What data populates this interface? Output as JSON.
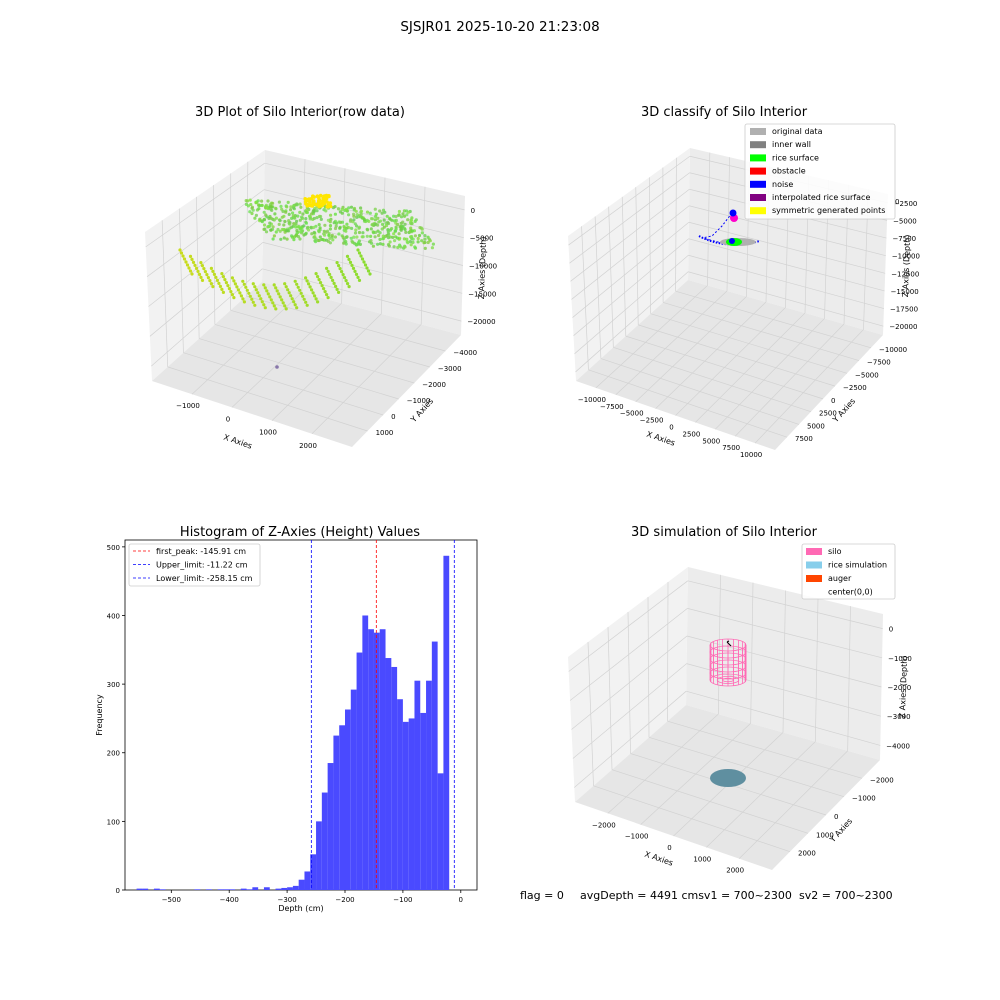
{
  "figure": {
    "suptitle": "SJSJR01 2025-10-20 21:23:08"
  },
  "panels": {
    "raw": {
      "title": "3D Plot of Silo Interior(row data)",
      "xlabel": "X Axies",
      "ylabel": "Y Axies",
      "zlabel": "Z Axies (Depth)",
      "xticks": [
        "−1000",
        "0",
        "1000",
        "2000"
      ],
      "yticks": [
        "1000",
        "0",
        "−1000",
        "−2000",
        "−3000",
        "−4000"
      ],
      "zticks": [
        "0",
        "−5000",
        "−10000",
        "−15000",
        "−20000"
      ]
    },
    "classify": {
      "title": "3D classify of Silo Interior",
      "xlabel": "X Axies",
      "ylabel": "Y Axies",
      "zlabel": "Z Axies (Depth)",
      "xticks": [
        "−10000",
        "−7500",
        "−5000",
        "−2500",
        "0",
        "2500",
        "5000",
        "7500",
        "10000"
      ],
      "yticks": [
        "7500",
        "5000",
        "2500",
        "0",
        "−2500",
        "−5000",
        "−7500",
        "−10000"
      ],
      "zticks": [
        "−2500",
        "−5000",
        "−7500",
        "−10000",
        "−12500",
        "−15000",
        "−17500",
        "−20000"
      ],
      "ztop_partial": "0",
      "legend": [
        {
          "label": "original data",
          "color": "#b0b0b0"
        },
        {
          "label": "inner wall",
          "color": "#808080"
        },
        {
          "label": "rice surface",
          "color": "#00ff00"
        },
        {
          "label": "obstacle",
          "color": "#ff0000"
        },
        {
          "label": "noise",
          "color": "#0000ff"
        },
        {
          "label": "interpolated rice surface",
          "color": "#800080"
        },
        {
          "label": "symmetric generated points",
          "color": "#ffff00"
        }
      ]
    },
    "simulation": {
      "title": "3D simulation of Silo Interior",
      "xlabel": "X Axies",
      "ylabel": "Y Axies",
      "zlabel": "Z Axies (Depth)",
      "xticks": [
        "−2000",
        "−1000",
        "0",
        "1000",
        "2000"
      ],
      "yticks": [
        "2000",
        "1000",
        "0",
        "−1000",
        "−2000"
      ],
      "zticks": [
        "0",
        "−1000",
        "−2000",
        "−3000",
        "−4000"
      ],
      "legend": [
        {
          "label": "silo",
          "color": "#ff69b4"
        },
        {
          "label": "rice simulation",
          "color": "#87ceeb"
        },
        {
          "label": "auger",
          "color": "#ff4500"
        },
        {
          "label": "center(0,0)",
          "color": ""
        }
      ]
    }
  },
  "status": {
    "flag": "flag = 0",
    "avg": "avgDepth = 4491 cmsv1 = 700~2300",
    "sv2": "sv2 = 700~2300"
  },
  "chart_data": [
    {
      "type": "bar",
      "title": "Histogram of Z-Axies (Height) Values",
      "xlabel": "Depth (cm)",
      "ylabel": "Frequency",
      "xlim": [
        -580,
        28
      ],
      "ylim": [
        0,
        510
      ],
      "xticks": [
        -500,
        -400,
        -300,
        -200,
        -100,
        0
      ],
      "yticks": [
        0,
        100,
        200,
        300,
        400,
        500
      ],
      "bin_width": 10,
      "bins": [
        [
          -560,
          2
        ],
        [
          -550,
          2
        ],
        [
          -530,
          2
        ],
        [
          -520,
          1
        ],
        [
          -460,
          1
        ],
        [
          -440,
          1
        ],
        [
          -420,
          1
        ],
        [
          -410,
          1
        ],
        [
          -400,
          1
        ],
        [
          -380,
          2
        ],
        [
          -370,
          1
        ],
        [
          -360,
          4
        ],
        [
          -340,
          4
        ],
        [
          -320,
          2
        ],
        [
          -310,
          3
        ],
        [
          -300,
          4
        ],
        [
          -290,
          6
        ],
        [
          -280,
          15
        ],
        [
          -270,
          27
        ],
        [
          -260,
          52
        ],
        [
          -250,
          100
        ],
        [
          -240,
          142
        ],
        [
          -230,
          185
        ],
        [
          -220,
          225
        ],
        [
          -210,
          240
        ],
        [
          -200,
          263
        ],
        [
          -190,
          292
        ],
        [
          -180,
          346
        ],
        [
          -170,
          400
        ],
        [
          -160,
          380
        ],
        [
          -150,
          375
        ],
        [
          -140,
          380
        ],
        [
          -130,
          338
        ],
        [
          -120,
          325
        ],
        [
          -110,
          278
        ],
        [
          -100,
          245
        ],
        [
          -90,
          250
        ],
        [
          -80,
          305
        ],
        [
          -70,
          258
        ],
        [
          -60,
          305
        ],
        [
          -50,
          362
        ],
        [
          -40,
          170
        ],
        [
          -30,
          487
        ]
      ],
      "bar_color": "#4a4aff",
      "vlines": [
        {
          "label": "first_peak: -145.91 cm",
          "x": -145.91,
          "color": "#ff0000"
        },
        {
          "label": "Upper_limit: -11.22 cm",
          "x": -11.22,
          "color": "#0000ff"
        },
        {
          "label": "Lower_limit: -258.15 cm",
          "x": -258.15,
          "color": "#0000ff"
        }
      ],
      "legend_position": "upper-left"
    }
  ]
}
